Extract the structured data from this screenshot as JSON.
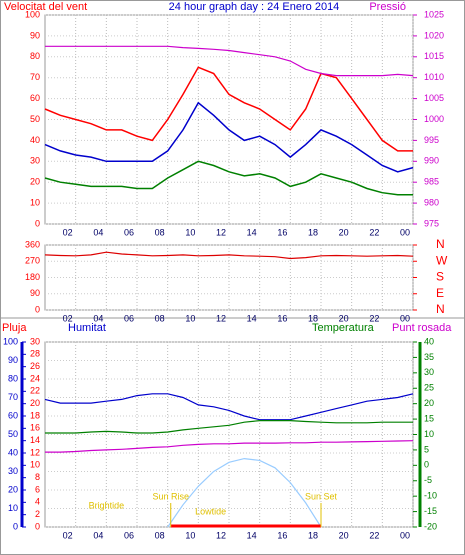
{
  "chart_data": [
    {
      "type": "line",
      "title": "24 hour graph day : 24 Enero 2014",
      "ylabel": "Velocitat del vent",
      "y2label": "Pressió",
      "x": [
        0,
        1,
        2,
        3,
        4,
        5,
        6,
        7,
        8,
        9,
        10,
        11,
        12,
        13,
        14,
        15,
        16,
        17,
        18,
        19,
        20,
        21,
        22,
        23,
        24
      ],
      "xlim": [
        0,
        24
      ],
      "xticks": [
        {
          "value": 2,
          "label": "02"
        },
        {
          "value": 4,
          "label": "04"
        },
        {
          "value": 6,
          "label": "06"
        },
        {
          "value": 8,
          "label": "08"
        },
        10,
        12,
        14,
        16,
        18,
        20,
        22,
        {
          "value": 24,
          "label": "00"
        }
      ],
      "ylim": [
        0,
        100
      ],
      "yticks": [
        0,
        10,
        20,
        30,
        40,
        50,
        60,
        70,
        80,
        90,
        100
      ],
      "y2lim": [
        975,
        1025
      ],
      "y2ticks": [
        975,
        980,
        985,
        990,
        995,
        1000,
        1005,
        1010,
        1015,
        1020,
        1025
      ],
      "series": [
        {
          "color": "#ff0000",
          "values": [
            55,
            52,
            50,
            48,
            45,
            45,
            42,
            40,
            50,
            62,
            75,
            72,
            62,
            58,
            55,
            50,
            45,
            55,
            72,
            70,
            60,
            50,
            40,
            35,
            35
          ]
        },
        {
          "color": "#0000cc",
          "values": [
            38,
            35,
            33,
            32,
            30,
            30,
            30,
            30,
            35,
            45,
            58,
            52,
            45,
            40,
            42,
            38,
            32,
            38,
            45,
            42,
            38,
            33,
            28,
            25,
            27
          ]
        },
        {
          "color": "#008000",
          "values": [
            22,
            20,
            19,
            18,
            18,
            18,
            17,
            17,
            22,
            26,
            30,
            28,
            25,
            23,
            24,
            22,
            18,
            20,
            24,
            22,
            20,
            17,
            15,
            14,
            14
          ]
        },
        {
          "color": "#cc00cc",
          "axis": "y2",
          "values": [
            1017.5,
            1017.5,
            1017.5,
            1017.5,
            1017.5,
            1017.5,
            1017.5,
            1017.5,
            1017.5,
            1017.2,
            1017,
            1016.8,
            1016.5,
            1016,
            1015.5,
            1015,
            1014,
            1012,
            1011,
            1010.5,
            1010.5,
            1010.5,
            1010.5,
            1010.8,
            1010.5
          ]
        }
      ]
    },
    {
      "type": "line",
      "x": [
        0,
        1,
        2,
        3,
        4,
        5,
        6,
        7,
        8,
        9,
        10,
        11,
        12,
        13,
        14,
        15,
        16,
        17,
        18,
        19,
        20,
        21,
        22,
        23,
        24
      ],
      "xlim": [
        0,
        24
      ],
      "xticks": [
        {
          "value": 2,
          "label": "02"
        },
        {
          "value": 4,
          "label": "04"
        },
        {
          "value": 6,
          "label": "06"
        },
        {
          "value": 8,
          "label": "08"
        },
        10,
        12,
        14,
        16,
        18,
        20,
        22,
        {
          "value": 24,
          "label": "00"
        }
      ],
      "ylim": [
        0,
        360
      ],
      "yticks": [
        0,
        90,
        180,
        270,
        360
      ],
      "y2lim": [
        0,
        360
      ],
      "y2ticks": [
        {
          "value": 0,
          "label": "N"
        },
        {
          "value": 90,
          "label": "E"
        },
        {
          "value": 180,
          "label": "S"
        },
        {
          "value": 270,
          "label": "W"
        },
        {
          "value": 360,
          "label": "N"
        }
      ],
      "series": [
        {
          "color": "#dd0000",
          "values": [
            305,
            302,
            300,
            305,
            320,
            310,
            305,
            300,
            302,
            305,
            300,
            302,
            305,
            300,
            298,
            295,
            285,
            290,
            300,
            302,
            300,
            298,
            300,
            302,
            298
          ]
        }
      ]
    },
    {
      "type": "line",
      "x": [
        0,
        1,
        2,
        3,
        4,
        5,
        6,
        7,
        8,
        9,
        10,
        11,
        12,
        13,
        14,
        15,
        16,
        17,
        18,
        19,
        20,
        21,
        22,
        23,
        24
      ],
      "xlim": [
        0,
        24
      ],
      "xticks": [
        {
          "value": 2,
          "label": "02"
        },
        {
          "value": 4,
          "label": "04"
        },
        {
          "value": 6,
          "label": "06"
        },
        {
          "value": 8,
          "label": "08"
        },
        10,
        12,
        14,
        16,
        18,
        20,
        22,
        {
          "value": 24,
          "label": "00"
        }
      ],
      "y3label": "Pluja",
      "y3lim": [
        0,
        30
      ],
      "y3ticks": [
        0,
        2,
        4,
        6,
        8,
        10,
        12,
        14,
        16,
        18,
        20,
        22,
        24,
        26,
        28,
        30
      ],
      "ylim": [
        0,
        100
      ],
      "yticks": [
        0,
        10,
        20,
        30,
        40,
        50,
        60,
        70,
        80,
        90,
        100
      ],
      "y2lim": [
        -20,
        40
      ],
      "y2ticks": [
        -20,
        -15,
        -10,
        -5,
        0,
        5,
        10,
        15,
        20,
        25,
        30,
        35,
        40
      ],
      "series": [
        {
          "name": "Humitat",
          "color": "#0000cc",
          "values": [
            69,
            67,
            67,
            67,
            68,
            69,
            71,
            72,
            72,
            70,
            66,
            65,
            63,
            60,
            58,
            58,
            58,
            60,
            62,
            64,
            66,
            68,
            69,
            70,
            72
          ]
        },
        {
          "name": "Temperatura",
          "color": "#008000",
          "values": [
            10.5,
            10.5,
            10.5,
            10.8,
            11,
            10.8,
            10.5,
            10.5,
            10.8,
            11.5,
            12,
            12.5,
            13,
            14,
            14.5,
            14.5,
            14.5,
            14.2,
            14,
            13.8,
            13.8,
            13.8,
            14,
            14,
            14
          ]
        },
        {
          "name": "Punt rosada",
          "color": "#cc00cc",
          "values": [
            4.3,
            4.3,
            4.5,
            4.8,
            5,
            5.2,
            5.5,
            5.8,
            6,
            6.5,
            6.8,
            7,
            7,
            7.2,
            7.2,
            7.2,
            7.3,
            7.3,
            7.5,
            7.5,
            7.6,
            7.7,
            7.8,
            7.9,
            8
          ]
        },
        {
          "color": "#99ccff",
          "values": [
            null,
            null,
            null,
            null,
            null,
            null,
            null,
            null,
            0,
            12,
            22,
            30,
            35,
            37,
            36,
            32,
            24,
            13,
            0,
            null,
            null,
            null,
            null,
            null,
            null
          ]
        }
      ],
      "annotations": [
        {
          "text": "Brightide",
          "x": 4
        },
        {
          "text": "Sun Rise",
          "x": 8.2
        },
        {
          "text": "Lowtide",
          "x": 10.8
        },
        {
          "text": "Sun Set",
          "x": 18
        }
      ]
    }
  ]
}
